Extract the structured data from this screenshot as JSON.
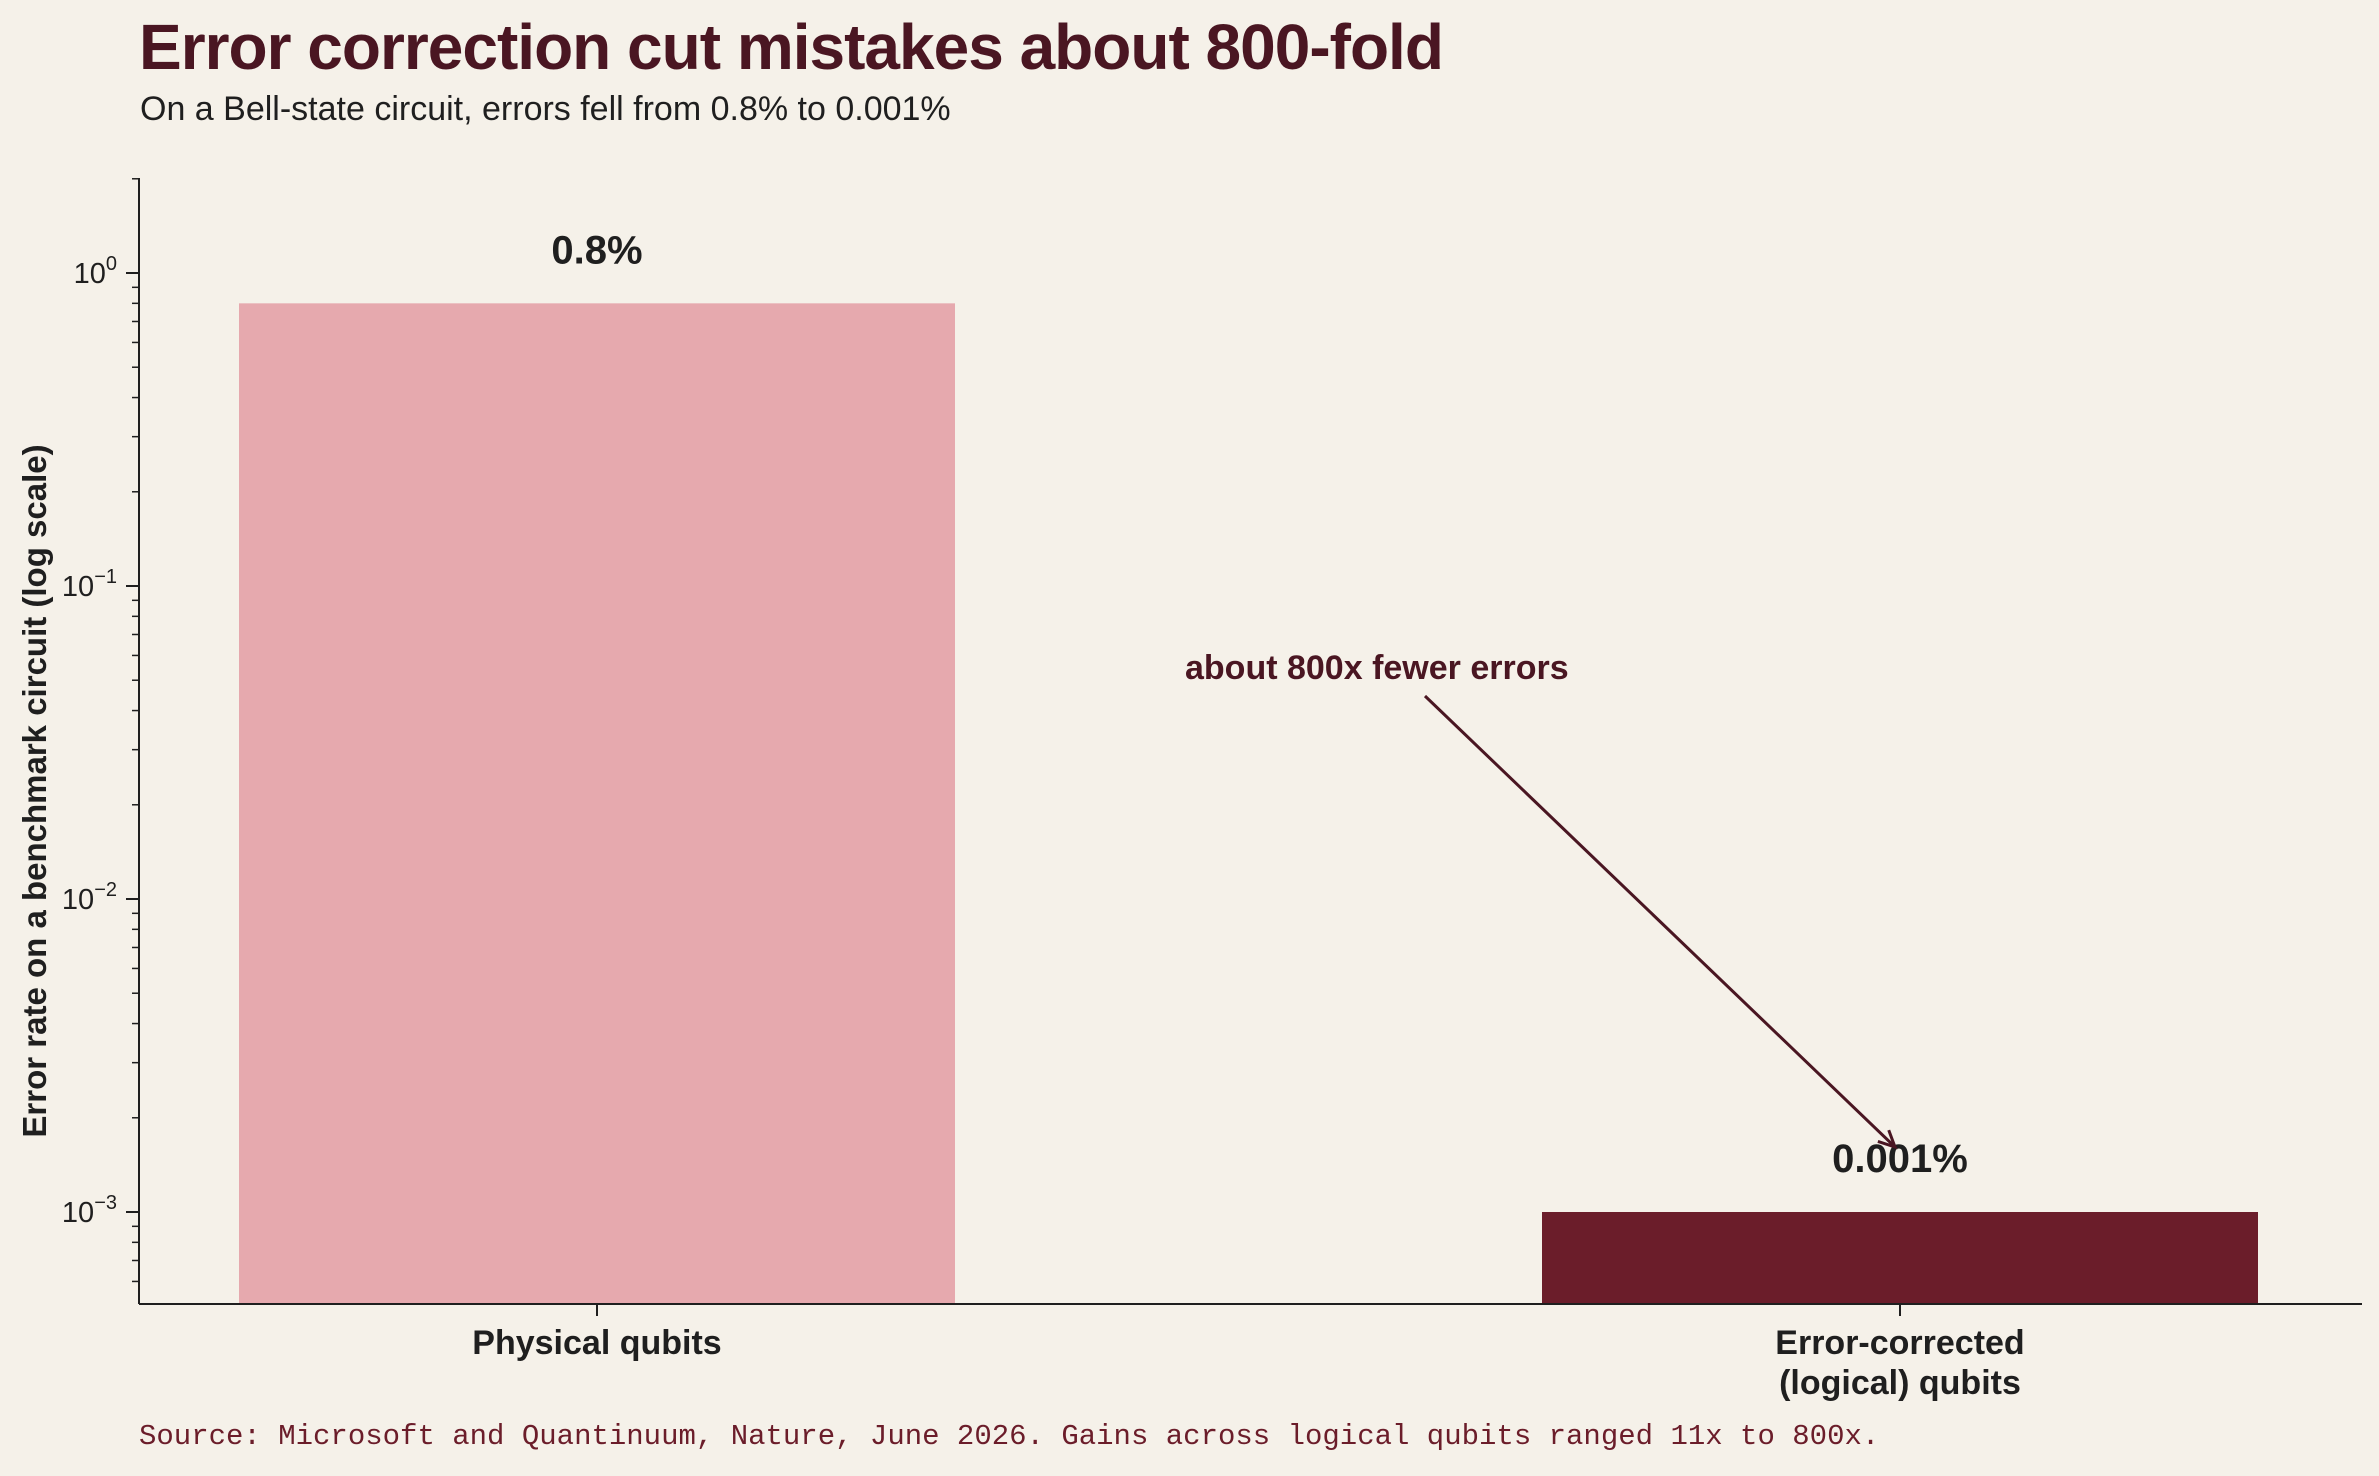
{
  "chart_data": {
    "type": "bar",
    "title": "Error correction cut mistakes about 800-fold",
    "subtitle": "On a Bell-state circuit, errors fell from 0.8% to 0.001%",
    "ylabel": "Error rate on a benchmark circuit (log scale)",
    "xlabel": "",
    "yscale": "log",
    "ylim": [
      0.0005,
      2
    ],
    "yticks": [
      {
        "value": 1,
        "base": "10",
        "exp": "0"
      },
      {
        "value": 0.1,
        "base": "10",
        "exp": "−1"
      },
      {
        "value": 0.01,
        "base": "10",
        "exp": "−2"
      },
      {
        "value": 0.001,
        "base": "10",
        "exp": "−3"
      }
    ],
    "categories": [
      {
        "lines": [
          "Physical qubits"
        ]
      },
      {
        "lines": [
          "Error-corrected",
          "(logical) qubits"
        ]
      }
    ],
    "values": [
      0.8,
      0.001
    ],
    "data_labels": [
      "0.8%",
      "0.001%"
    ],
    "colors": [
      "#e6a9ae",
      "#6b1d2a"
    ],
    "annotation": {
      "text": "about 800x fewer errors",
      "points_to_category": 1,
      "color": "#4a1622"
    },
    "grid": false,
    "legend": "none"
  },
  "source": "Source: Microsoft and Quantinuum, Nature, June 2026.  Gains across logical qubits ranged 11x to 800x."
}
